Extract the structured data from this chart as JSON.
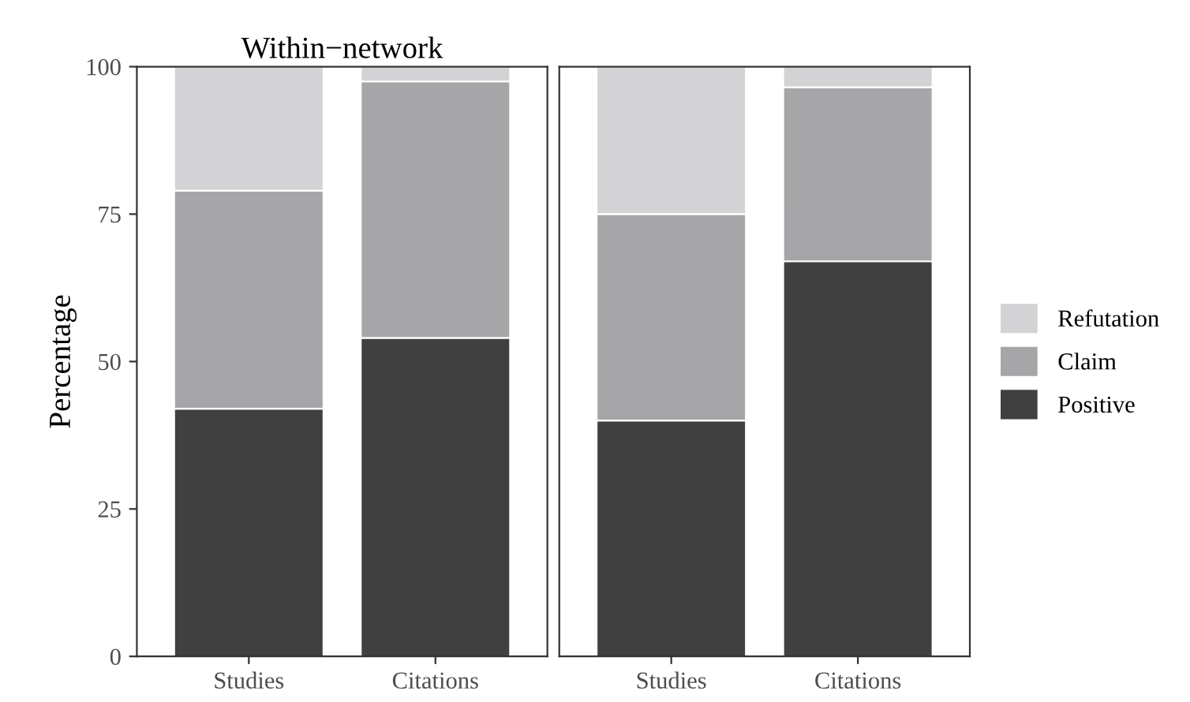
{
  "chart_data": [
    {
      "type": "bar",
      "stacked": true,
      "title": "Within−network",
      "ylabel": "Percentage",
      "categories": [
        "Studies",
        "Citations"
      ],
      "ylim": [
        0,
        100
      ],
      "yticks": [
        0,
        25,
        50,
        75,
        100
      ],
      "legend": false,
      "series": [
        {
          "color": "#404040",
          "values": [
            42,
            54
          ]
        },
        {
          "color": "#a6a6a8",
          "values": [
            37,
            43.5
          ]
        },
        {
          "color": "#d3d3d5",
          "values": [
            21,
            2.5
          ]
        }
      ]
    },
    {
      "type": "bar",
      "stacked": true,
      "categories": [
        "Studies",
        "Citations"
      ],
      "ylim": [
        0,
        100
      ],
      "yticks": [
        0,
        25,
        50,
        75,
        100
      ],
      "tick_labels": "x",
      "legend": "right",
      "series": [
        {
          "name": "Positive",
          "color": "#404040",
          "values": [
            40,
            67
          ]
        },
        {
          "name": "Claim",
          "color": "#a6a6a8",
          "values": [
            35,
            29.5
          ]
        },
        {
          "name": "Refutation",
          "color": "#d3d3d5",
          "values": [
            25,
            3.5
          ]
        }
      ]
    }
  ]
}
